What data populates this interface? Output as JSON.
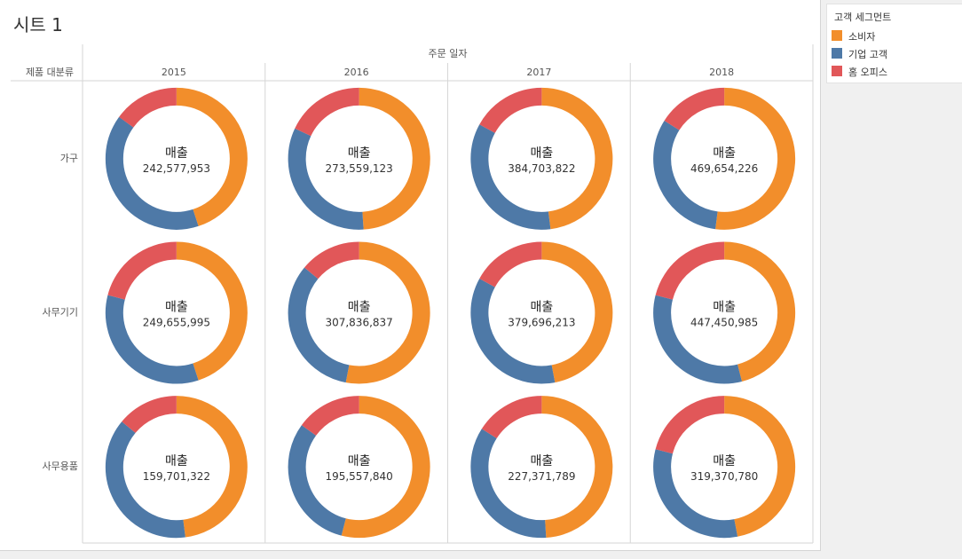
{
  "sheet_title": "시트 1",
  "legend": {
    "title": "고객 세그먼트",
    "items": [
      {
        "label": "소비자",
        "color": "#f28e2b"
      },
      {
        "label": "기업 고객",
        "color": "#4e79a7"
      },
      {
        "label": "홈 오피스",
        "color": "#e15759"
      }
    ]
  },
  "chart_data": {
    "type": "pie",
    "column_field": "주문 일자",
    "row_field": "제품 대분류",
    "columns": [
      "2015",
      "2016",
      "2017",
      "2018"
    ],
    "rows": [
      "가구",
      "사무기기",
      "사무용품"
    ],
    "measure_label": "매출",
    "series_names": [
      "소비자",
      "기업 고객",
      "홈 오피스"
    ],
    "cells": [
      {
        "row": "가구",
        "column": "2015",
        "total": "242,577,953",
        "shares": [
          0.45,
          0.4,
          0.15
        ]
      },
      {
        "row": "가구",
        "column": "2016",
        "total": "273,559,123",
        "shares": [
          0.49,
          0.33,
          0.18
        ]
      },
      {
        "row": "가구",
        "column": "2017",
        "total": "384,703,822",
        "shares": [
          0.48,
          0.35,
          0.17
        ]
      },
      {
        "row": "가구",
        "column": "2018",
        "total": "469,654,226",
        "shares": [
          0.52,
          0.32,
          0.16
        ]
      },
      {
        "row": "사무기기",
        "column": "2016",
        "total": "307,836,837",
        "shares": [
          0.53,
          0.33,
          0.14
        ]
      },
      {
        "row": "사무기기",
        "column": "2015",
        "total": "249,655,995",
        "shares": [
          0.45,
          0.34,
          0.21
        ]
      },
      {
        "row": "사무기기",
        "column": "2017",
        "total": "379,696,213",
        "shares": [
          0.47,
          0.36,
          0.17
        ]
      },
      {
        "row": "사무기기",
        "column": "2018",
        "total": "447,450,985",
        "shares": [
          0.46,
          0.33,
          0.21
        ]
      },
      {
        "row": "사무용품",
        "column": "2015",
        "total": "159,701,322",
        "shares": [
          0.48,
          0.38,
          0.14
        ]
      },
      {
        "row": "사무용품",
        "column": "2016",
        "total": "195,557,840",
        "shares": [
          0.54,
          0.31,
          0.15
        ]
      },
      {
        "row": "사무용품",
        "column": "2017",
        "total": "227,371,789",
        "shares": [
          0.49,
          0.35,
          0.16
        ]
      },
      {
        "row": "사무용품",
        "column": "2018",
        "total": "319,370,780",
        "shares": [
          0.47,
          0.32,
          0.21
        ]
      }
    ]
  }
}
